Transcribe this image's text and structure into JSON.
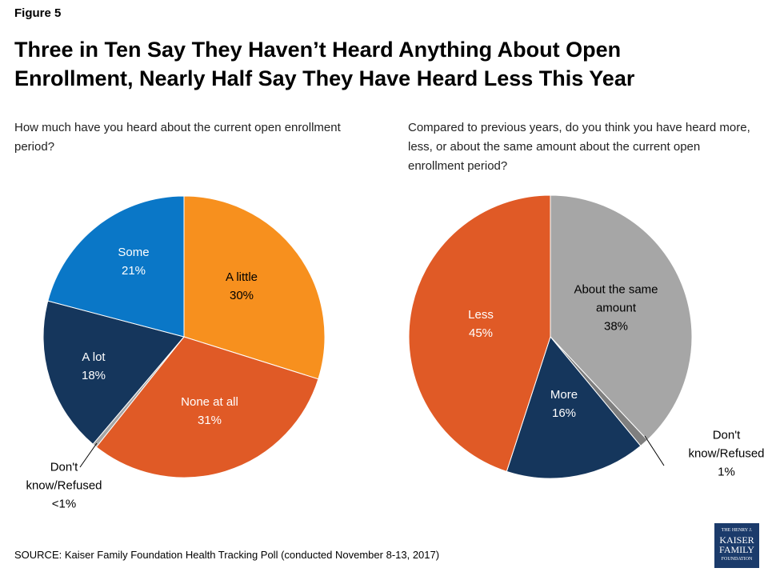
{
  "figure": "Figure 5",
  "title": "Three in Ten Say They Haven’t Heard Anything About Open Enrollment, Nearly Half Say They Have Heard Less This Year",
  "source": "SOURCE: Kaiser Family Foundation Health Tracking Poll (conducted November 8-13, 2017)",
  "logo": [
    "THE HENRY J.",
    "KAISER",
    "FAMILY",
    "FOUNDATION"
  ],
  "chart_data": [
    {
      "type": "pie",
      "title": "How much have you heard about the current open enrollment period?",
      "categories": [
        "A little",
        "None at all",
        "Don't know/Refused",
        "A lot",
        "Some"
      ],
      "values": [
        30,
        31,
        0.5,
        18,
        21
      ],
      "value_labels": [
        "30%",
        "31%",
        "<1%",
        "18%",
        "21%"
      ],
      "colors": [
        "#f7901e",
        "#e05a26",
        "#a6a6a6",
        "#15365c",
        "#0a77c7"
      ],
      "label_colors": [
        "#000000",
        "#ffffff",
        "#000000",
        "#ffffff",
        "#ffffff"
      ]
    },
    {
      "type": "pie",
      "title": "Compared to previous years, do you think you have heard more, less, or about the same amount about the current open enrollment period?",
      "categories": [
        "About the same amount",
        "Don't know/Refused",
        "More",
        "Less"
      ],
      "values": [
        38,
        1,
        16,
        45
      ],
      "value_labels": [
        "38%",
        "1%",
        "16%",
        "45%"
      ],
      "colors": [
        "#a6a6a6",
        "#7f7f7f",
        "#15365c",
        "#e05a26"
      ],
      "label_colors": [
        "#000000",
        "#000000",
        "#ffffff",
        "#ffffff"
      ]
    }
  ]
}
